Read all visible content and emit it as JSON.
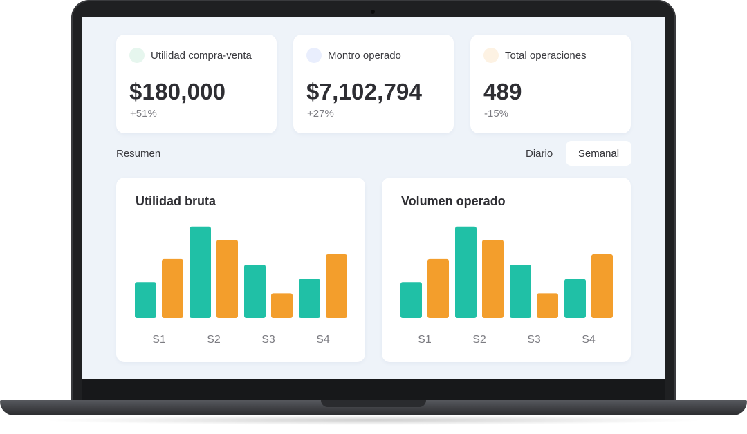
{
  "stats": [
    {
      "label": "Utilidad compra-venta",
      "value": "$180,000",
      "change": "+51%",
      "dot_color": "#e6f6ee"
    },
    {
      "label": "Montro operado",
      "value": "$7,102,794",
      "change": "+27%",
      "dot_color": "#e9eefd"
    },
    {
      "label": "Total operaciones",
      "value": "489",
      "change": "-15%",
      "dot_color": "#fdf2e3"
    }
  ],
  "summary": {
    "label": "Resumen",
    "period_daily": "Diario",
    "period_weekly": "Semanal",
    "selected_period": "Semanal"
  },
  "colors": {
    "series_a": "#20c0a6",
    "series_b": "#f39e2c"
  },
  "chart_data": [
    {
      "type": "bar",
      "title": "Utilidad bruta",
      "categories": [
        "S1",
        "S2",
        "S3",
        "S4"
      ],
      "series": [
        {
          "values": [
            45,
            115,
            67,
            49
          ]
        },
        {
          "values": [
            74,
            98,
            31,
            80
          ]
        }
      ],
      "ylim": [
        0,
        120
      ],
      "grid": false,
      "xlabel": "",
      "ylabel": ""
    },
    {
      "type": "bar",
      "title": "Volumen operado",
      "categories": [
        "S1",
        "S2",
        "S3",
        "S4"
      ],
      "series": [
        {
          "values": [
            45,
            115,
            67,
            49
          ]
        },
        {
          "values": [
            74,
            98,
            31,
            80
          ]
        }
      ],
      "ylim": [
        0,
        120
      ],
      "grid": false,
      "xlabel": "",
      "ylabel": ""
    }
  ]
}
